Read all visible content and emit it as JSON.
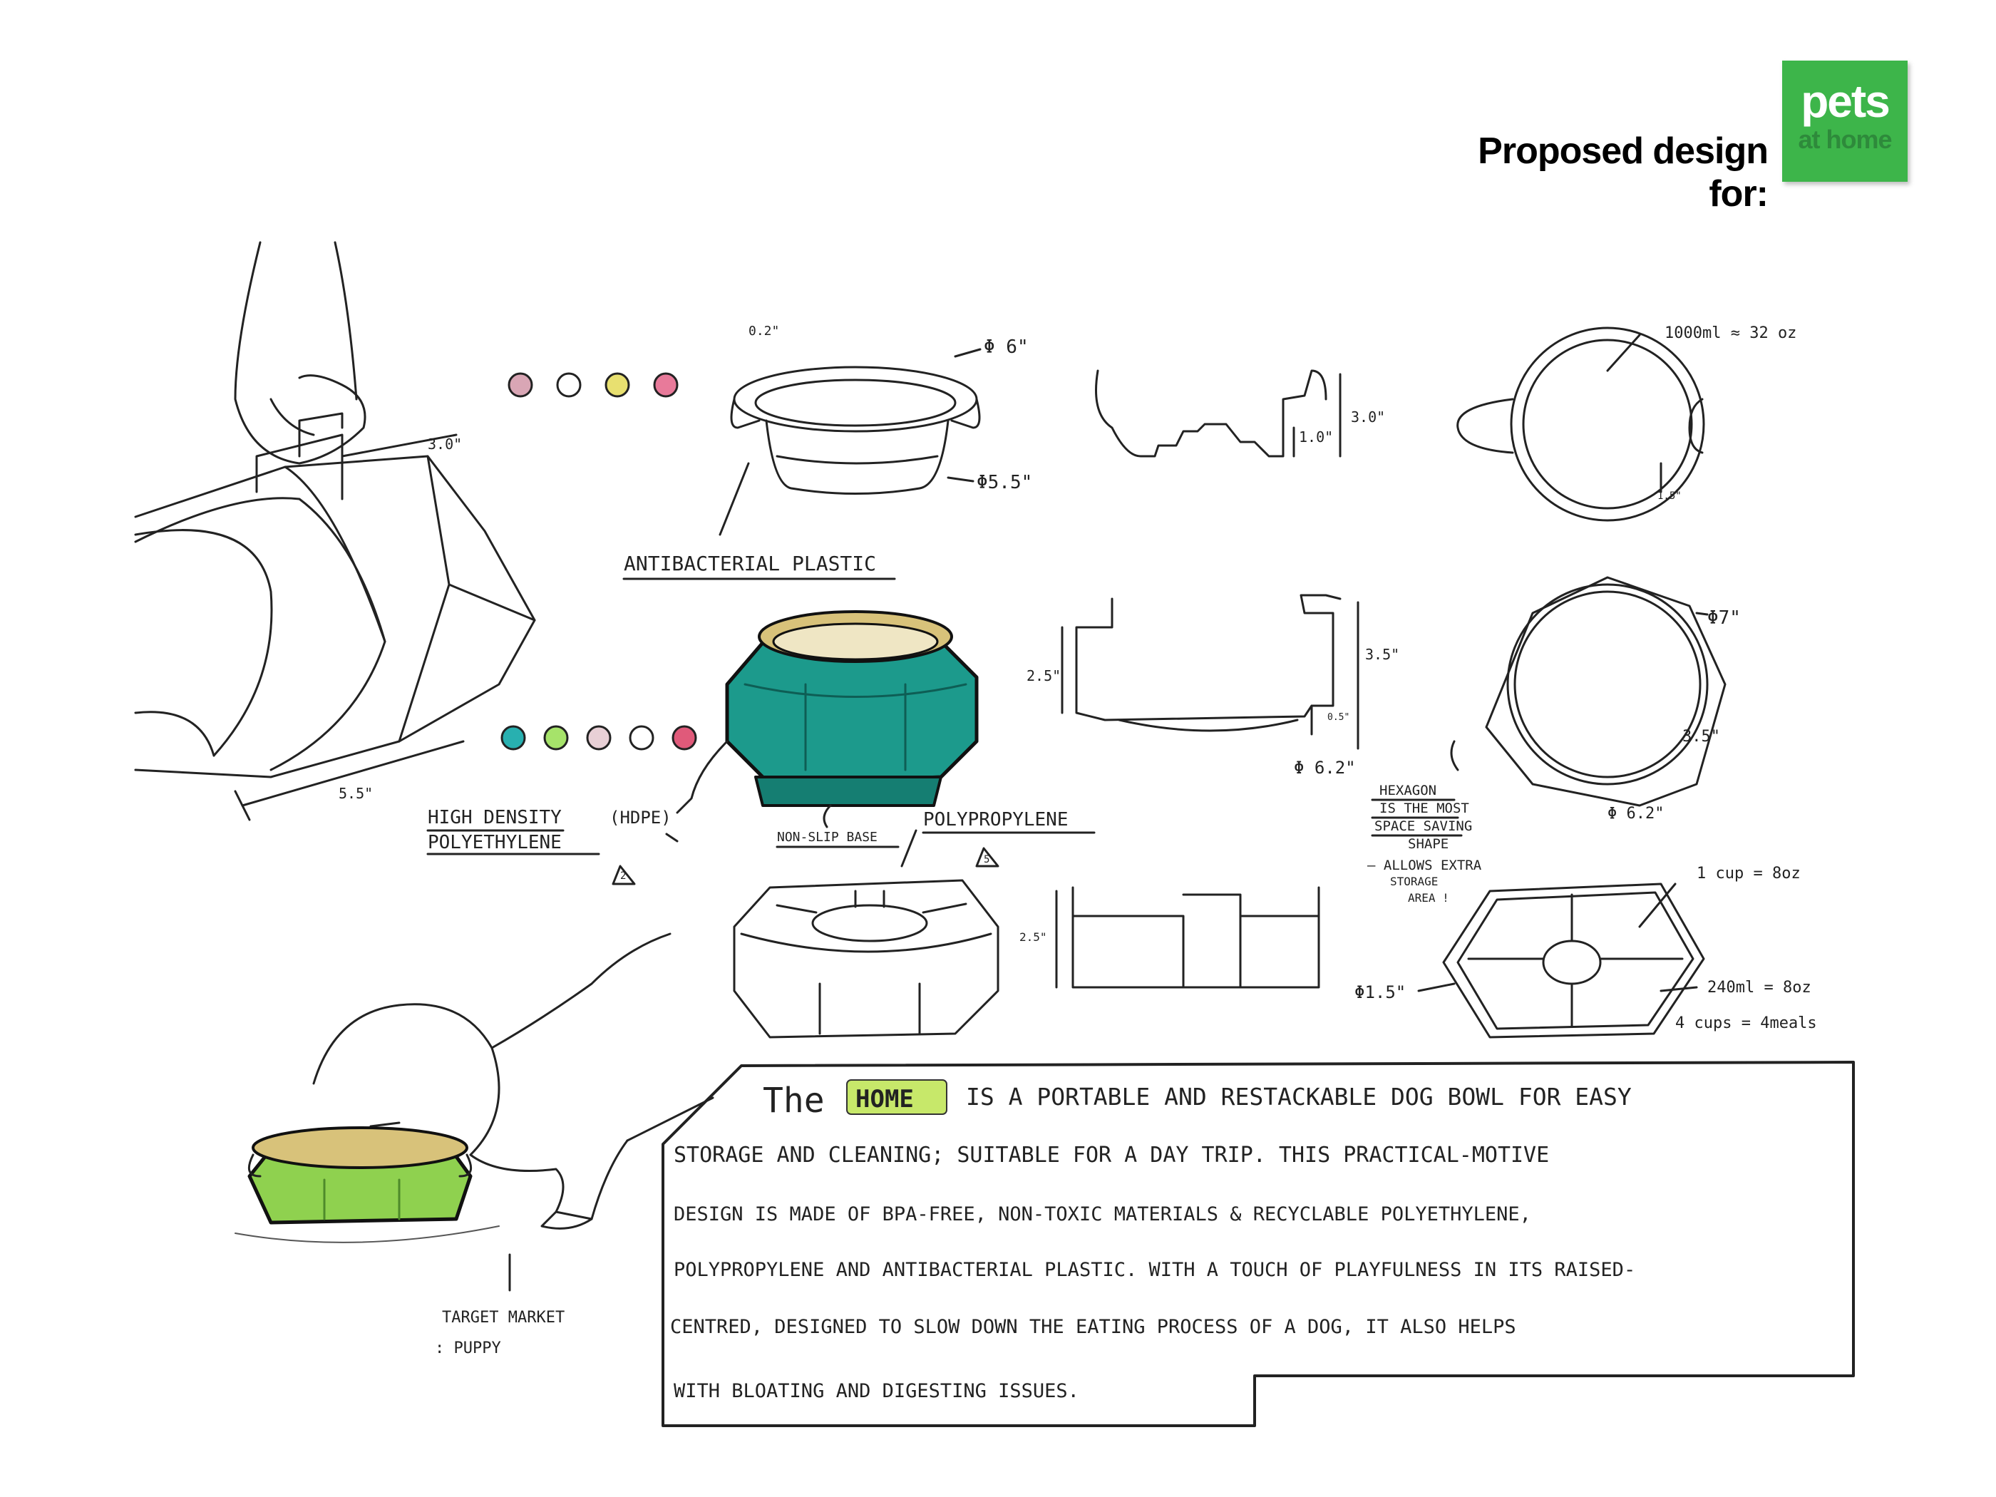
{
  "header": {
    "proposed_label": "Proposed design for:",
    "logo_top": "pets",
    "logo_bottom": "at home"
  },
  "colors": {
    "brand_green": "#3db54a",
    "teal": "#1c9a8c",
    "lime": "#8fd14f",
    "gold": "#d8c27a"
  },
  "swatches_top": [
    "#d9a6b5",
    "#ffffff",
    "#e8e070",
    "#e87a9a"
  ],
  "swatches_mid": [
    "#28b0b0",
    "#a6e36a",
    "#e8d0d6",
    "#ffffff",
    "#e05a7a"
  ],
  "labels": {
    "dim_3in": "3.0\"",
    "dim_5_5in": "5.5\"",
    "dim_02": "0.2\"",
    "dia_6": "Φ 6\"",
    "dia_5_5": "Φ5.5\"",
    "antibacterial": "ANTIBACTERIAL  PLASTIC",
    "profile_1in": "1.0\"",
    "profile_3in": "3.0\"",
    "volume": "1000ml ≈ 32 oz",
    "handle_15": "1.5\"",
    "section_25": "2.5\"",
    "section_35": "3.5\"",
    "section_05": "0.5\"",
    "section_dia": "Φ 6.2\"",
    "hex_dia7": "Φ7\"",
    "hex_35": "3.5\"",
    "hex_dia62": "Φ 6.2\"",
    "hexagon_note_1": "HEXAGON",
    "hexagon_note_2": "IS  THE  MOST",
    "hexagon_note_3": "SPACE SAVING",
    "hexagon_note_4": "SHAPE",
    "hexagon_note_5": "– ALLOWS EXTRA",
    "hexagon_note_6": "STORAGE",
    "hexagon_note_7": "AREA !",
    "hdpe_1": "HIGH DENSITY",
    "hdpe_2": "POLYETHYLENE",
    "hdpe_3": "(HDPE)",
    "non_slip": "NON-SLIP BASE",
    "polypropylene": "POLYPROPYLENE",
    "cup_note": "1 cup = 8oz",
    "ml_note": "240ml = 8oz",
    "meals_note": "4 cups = 4meals",
    "tray_25": "2.5\"",
    "tray_dia": "Φ1.5\"",
    "target_1": "TARGET MARKET",
    "target_2": ": PUPPY",
    "recycle_2": "2",
    "recycle_5": "5"
  },
  "description": {
    "the": "The",
    "brand": "HOME",
    "line1": "IS A  PORTABLE  AND  RESTACKABLE DOG BOWL FOR EASY",
    "line2": "STORAGE AND  CLEANING; SUITABLE FOR  A  DAY TRIP.  THIS PRACTICAL-MOTIVE",
    "line3": "DESIGN  IS  MADE  OF  BPA-FREE, NON-TOXIC  MATERIALS & RECYCLABLE  POLYETHYLENE,",
    "line4": "POLYPROPYLENE AND ANTIBACTERIAL  PLASTIC. WITH A TOUCH OF PLAYFULNESS  IN  ITS  RAISED-",
    "line5": "CENTRED, DESIGNED   TO   SLOW  DOWN   THE  EATING  PROCESS  OF   A  DOG,  IT  ALSO HELPS",
    "line6": "WITH  BLOATING  AND   DIGESTING   ISSUES."
  }
}
